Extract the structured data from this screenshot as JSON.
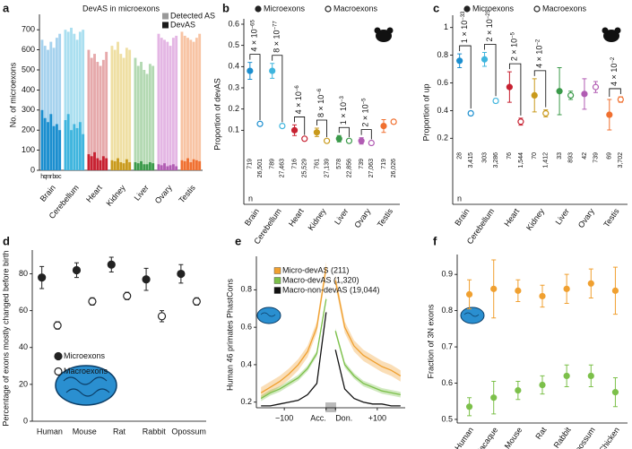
{
  "chart_data": [
    {
      "panel_label": "a",
      "type": "bar",
      "title": "DevAS in microexons",
      "y_label": "No. of microexons",
      "groups": [
        "Brain",
        "Cerebellum",
        "Heart",
        "Kidney",
        "Liver",
        "Ovary",
        "Testis"
      ],
      "subcategories": [
        "h",
        "q",
        "m",
        "r",
        "b",
        "o",
        "c"
      ],
      "group_colors": [
        "#1b8ecf",
        "#3fb5de",
        "#c72131",
        "#c99a1c",
        "#3b9a4a",
        "#b15cb3",
        "#f07030"
      ],
      "group_light_colors": [
        "#a6d2ee",
        "#aadff0",
        "#e6a9ab",
        "#efdfa3",
        "#b3d9b2",
        "#e4b6e4",
        "#f8c4a4"
      ],
      "legend": "upper right",
      "series": [
        {
          "name": "Detected AS",
          "color": "#999999",
          "values": [
            [
              650,
              620,
              600,
              640,
              610,
              660,
              680
            ],
            [
              700,
              690,
              710,
              680,
              650,
              690,
              700
            ],
            [
              600,
              560,
              580,
              540,
              520,
              550,
              590
            ],
            [
              620,
              600,
              640,
              580,
              560,
              610,
              600
            ],
            [
              560,
              520,
              540,
              500,
              480,
              530,
              520
            ],
            [
              680,
              660,
              650,
              640,
              620,
              660,
              670
            ],
            [
              690,
              670,
              660,
              650,
              640,
              660,
              680
            ]
          ]
        },
        {
          "name": "DevAS",
          "color": "#1a1a1a",
          "values": [
            [
              300,
              260,
              240,
              280,
              220,
              230,
              200
            ],
            [
              250,
              280,
              200,
              230,
              210,
              240,
              180
            ],
            [
              80,
              70,
              90,
              60,
              50,
              70,
              60
            ],
            [
              50,
              45,
              60,
              40,
              35,
              55,
              40
            ],
            [
              40,
              35,
              45,
              30,
              30,
              40,
              35
            ],
            [
              30,
              25,
              35,
              20,
              25,
              30,
              20
            ],
            [
              50,
              45,
              60,
              40,
              55,
              50,
              45
            ]
          ]
        }
      ],
      "ylim": [
        0,
        750
      ],
      "yticks": [
        0,
        100,
        200,
        300,
        400,
        500,
        600,
        700
      ]
    },
    {
      "panel_label": "b",
      "type": "errorbar",
      "y_label": "Proportion of devAS",
      "categories": [
        "Brain",
        "Cerebellum",
        "Heart",
        "Kidney",
        "Liver",
        "Ovary",
        "Testis"
      ],
      "category_colors": [
        "#1b8ecf",
        "#3fb5de",
        "#c72131",
        "#c99a1c",
        "#3b9a4a",
        "#b15cb3",
        "#f07030"
      ],
      "dodge": true,
      "legend": "top",
      "series": [
        {
          "name": "Microexons",
          "marker": "filled",
          "color": "#222222",
          "values": [
            0.38,
            0.38,
            0.1,
            0.09,
            0.06,
            0.05,
            0.12
          ],
          "errors": [
            0.04,
            0.035,
            0.025,
            0.02,
            0.015,
            0.015,
            0.03
          ]
        },
        {
          "name": "Macroexons",
          "marker": "open",
          "color": "#222222",
          "values": [
            0.13,
            0.12,
            0.06,
            0.05,
            0.05,
            0.04,
            0.14
          ],
          "errors": [
            0.005,
            0.005,
            0.005,
            0.005,
            0.005,
            0.005,
            0.01
          ]
        }
      ],
      "p_values": [
        {
          "base": "4 × 10",
          "exp": "−65"
        },
        {
          "base": "8 × 10",
          "exp": "−77"
        },
        {
          "base": "4 × 10",
          "exp": "−6"
        },
        {
          "base": "8 × 10",
          "exp": "−6"
        },
        {
          "base": "1 × 10",
          "exp": "−3"
        },
        {
          "base": "2 × 10",
          "exp": "−5"
        },
        null
      ],
      "n_label": "n",
      "n": [
        [
          "719",
          "789",
          "716",
          "761",
          "578",
          "739",
          "719"
        ],
        [
          "26,501",
          "27,463",
          "25,529",
          "27,139",
          "22,856",
          "27,063",
          "26,026"
        ]
      ],
      "ylim": [
        0,
        0.6
      ],
      "yticks": [
        0.1,
        0.2,
        0.3,
        0.4,
        0.5,
        0.6
      ]
    },
    {
      "panel_label": "c",
      "type": "errorbar",
      "y_label": "Proportion of up",
      "categories": [
        "Brain",
        "Cerebellum",
        "Heart",
        "Kidney",
        "Liver",
        "Ovary",
        "Testis"
      ],
      "category_colors": [
        "#1b8ecf",
        "#3fb5de",
        "#c72131",
        "#c99a1c",
        "#3b9a4a",
        "#b15cb3",
        "#f07030"
      ],
      "dodge": true,
      "legend": "top",
      "series": [
        {
          "name": "Microexons",
          "marker": "filled",
          "color": "#222222",
          "values": [
            0.76,
            0.77,
            0.57,
            0.51,
            0.54,
            0.52,
            0.37
          ],
          "errors": [
            0.05,
            0.05,
            0.11,
            0.12,
            0.17,
            0.11,
            0.11
          ]
        },
        {
          "name": "Macroexons",
          "marker": "open",
          "color": "#222222",
          "values": [
            0.38,
            0.47,
            0.32,
            0.38,
            0.51,
            0.57,
            0.48
          ],
          "errors": [
            0.015,
            0.015,
            0.025,
            0.025,
            0.03,
            0.04,
            0.02
          ]
        }
      ],
      "p_values": [
        {
          "base": "1 × 10",
          "exp": "−33"
        },
        {
          "base": "2 × 10",
          "exp": "−25"
        },
        {
          "base": "2 × 10",
          "exp": "−5"
        },
        {
          "base": "4 × 10",
          "exp": "−2"
        },
        null,
        null,
        {
          "base": "4 × 10",
          "exp": "−2"
        }
      ],
      "n_label": "n",
      "n": [
        [
          "28",
          "303",
          "76",
          "70",
          "33",
          "42",
          "69"
        ],
        [
          "3,415",
          "3,286",
          "1,544",
          "1,412",
          "893",
          "739",
          "3,702"
        ]
      ],
      "ylim": [
        0.15,
        1.05
      ],
      "yticks": [
        0.2,
        0.4,
        0.6,
        0.8,
        1.0
      ]
    },
    {
      "panel_label": "d",
      "type": "errorbar",
      "y_label": "Percentage of exons mostly changed before birth",
      "categories": [
        "Human",
        "Mouse",
        "Rat",
        "Rabbit",
        "Opossum"
      ],
      "dodge": true,
      "legend": "center",
      "series": [
        {
          "name": "Microexons",
          "marker": "filled",
          "color": "#222222",
          "values": [
            78,
            82,
            85,
            77,
            80
          ],
          "errors": [
            6,
            4,
            4,
            6,
            5
          ]
        },
        {
          "name": "Macroexons",
          "marker": "open",
          "color": "#222222",
          "values": [
            52,
            65,
            68,
            57,
            65
          ],
          "errors": [
            2,
            2,
            2,
            3,
            2
          ]
        }
      ],
      "ylim": [
        0,
        90
      ],
      "yticks": [
        0,
        20,
        40,
        60,
        80
      ]
    },
    {
      "panel_label": "e",
      "type": "line",
      "y_label": "Human 46 primates PhastCons",
      "legend": "upper center",
      "x": [
        -150,
        -130,
        -110,
        -90,
        -70,
        -50,
        -30,
        -10,
        0,
        10,
        30,
        50,
        70,
        90,
        110,
        130,
        150
      ],
      "series": [
        {
          "name": "Micro-devAS (211)",
          "color": "#f0a030",
          "values": [
            0.25,
            0.28,
            0.31,
            0.35,
            0.4,
            0.47,
            0.6,
            0.92,
            null,
            0.85,
            0.6,
            0.5,
            0.45,
            0.42,
            0.39,
            0.37,
            0.34
          ],
          "errors": [
            0.03,
            0.03,
            0.03,
            0.03,
            0.03,
            0.03,
            0.03,
            0.03,
            null,
            0.03,
            0.03,
            0.03,
            0.03,
            0.03,
            0.03,
            0.03,
            0.03
          ]
        },
        {
          "name": "Macro-devAS (1,320)",
          "color": "#7cc04a",
          "values": [
            0.22,
            0.25,
            0.27,
            0.3,
            0.33,
            0.38,
            0.46,
            0.75,
            null,
            0.58,
            0.4,
            0.34,
            0.3,
            0.28,
            0.26,
            0.25,
            0.24
          ],
          "errors": [
            0.015,
            0.015,
            0.015,
            0.015,
            0.015,
            0.015,
            0.015,
            0.015,
            null,
            0.015,
            0.015,
            0.015,
            0.015,
            0.015,
            0.015,
            0.015,
            0.015
          ]
        },
        {
          "name": "Macro-non-devAS (19,044)",
          "color": "#111111",
          "values": [
            0.18,
            0.18,
            0.19,
            0.2,
            0.21,
            0.24,
            0.3,
            0.68,
            null,
            0.48,
            0.27,
            0.22,
            0.2,
            0.19,
            0.19,
            0.18,
            0.18
          ]
        }
      ],
      "xlim": [
        -160,
        160
      ],
      "xticks": [
        {
          "value": -100,
          "label": "−100"
        },
        {
          "value": -10,
          "label": "Acc."
        },
        {
          "value": 10,
          "label": "Don."
        },
        {
          "value": 100,
          "label": "+100"
        }
      ],
      "ylim": [
        0.17,
        0.95
      ],
      "yticks": [
        0.2,
        0.4,
        0.6,
        0.8
      ]
    },
    {
      "panel_label": "f",
      "type": "errorbar",
      "y_label": "Fraction of 3N exons",
      "categories": [
        "Human",
        "Macaque",
        "Mouse",
        "Rat",
        "Rabbit",
        "Opossum",
        "Chicken"
      ],
      "dodge": false,
      "series": [
        {
          "marker": "filled",
          "color": "#f0a030",
          "values": [
            0.845,
            0.86,
            0.855,
            0.84,
            0.86,
            0.875,
            0.855
          ],
          "errors": [
            0.04,
            0.08,
            0.03,
            0.03,
            0.04,
            0.04,
            0.065
          ]
        },
        {
          "marker": "filled",
          "color": "#7cc04a",
          "values": [
            0.535,
            0.56,
            0.58,
            0.595,
            0.62,
            0.62,
            0.575
          ],
          "errors": [
            0.025,
            0.045,
            0.025,
            0.025,
            0.03,
            0.03,
            0.04
          ]
        }
      ],
      "ylim": [
        0.49,
        0.94
      ],
      "yticks": [
        0.5,
        0.6,
        0.7,
        0.8,
        0.9
      ]
    }
  ]
}
